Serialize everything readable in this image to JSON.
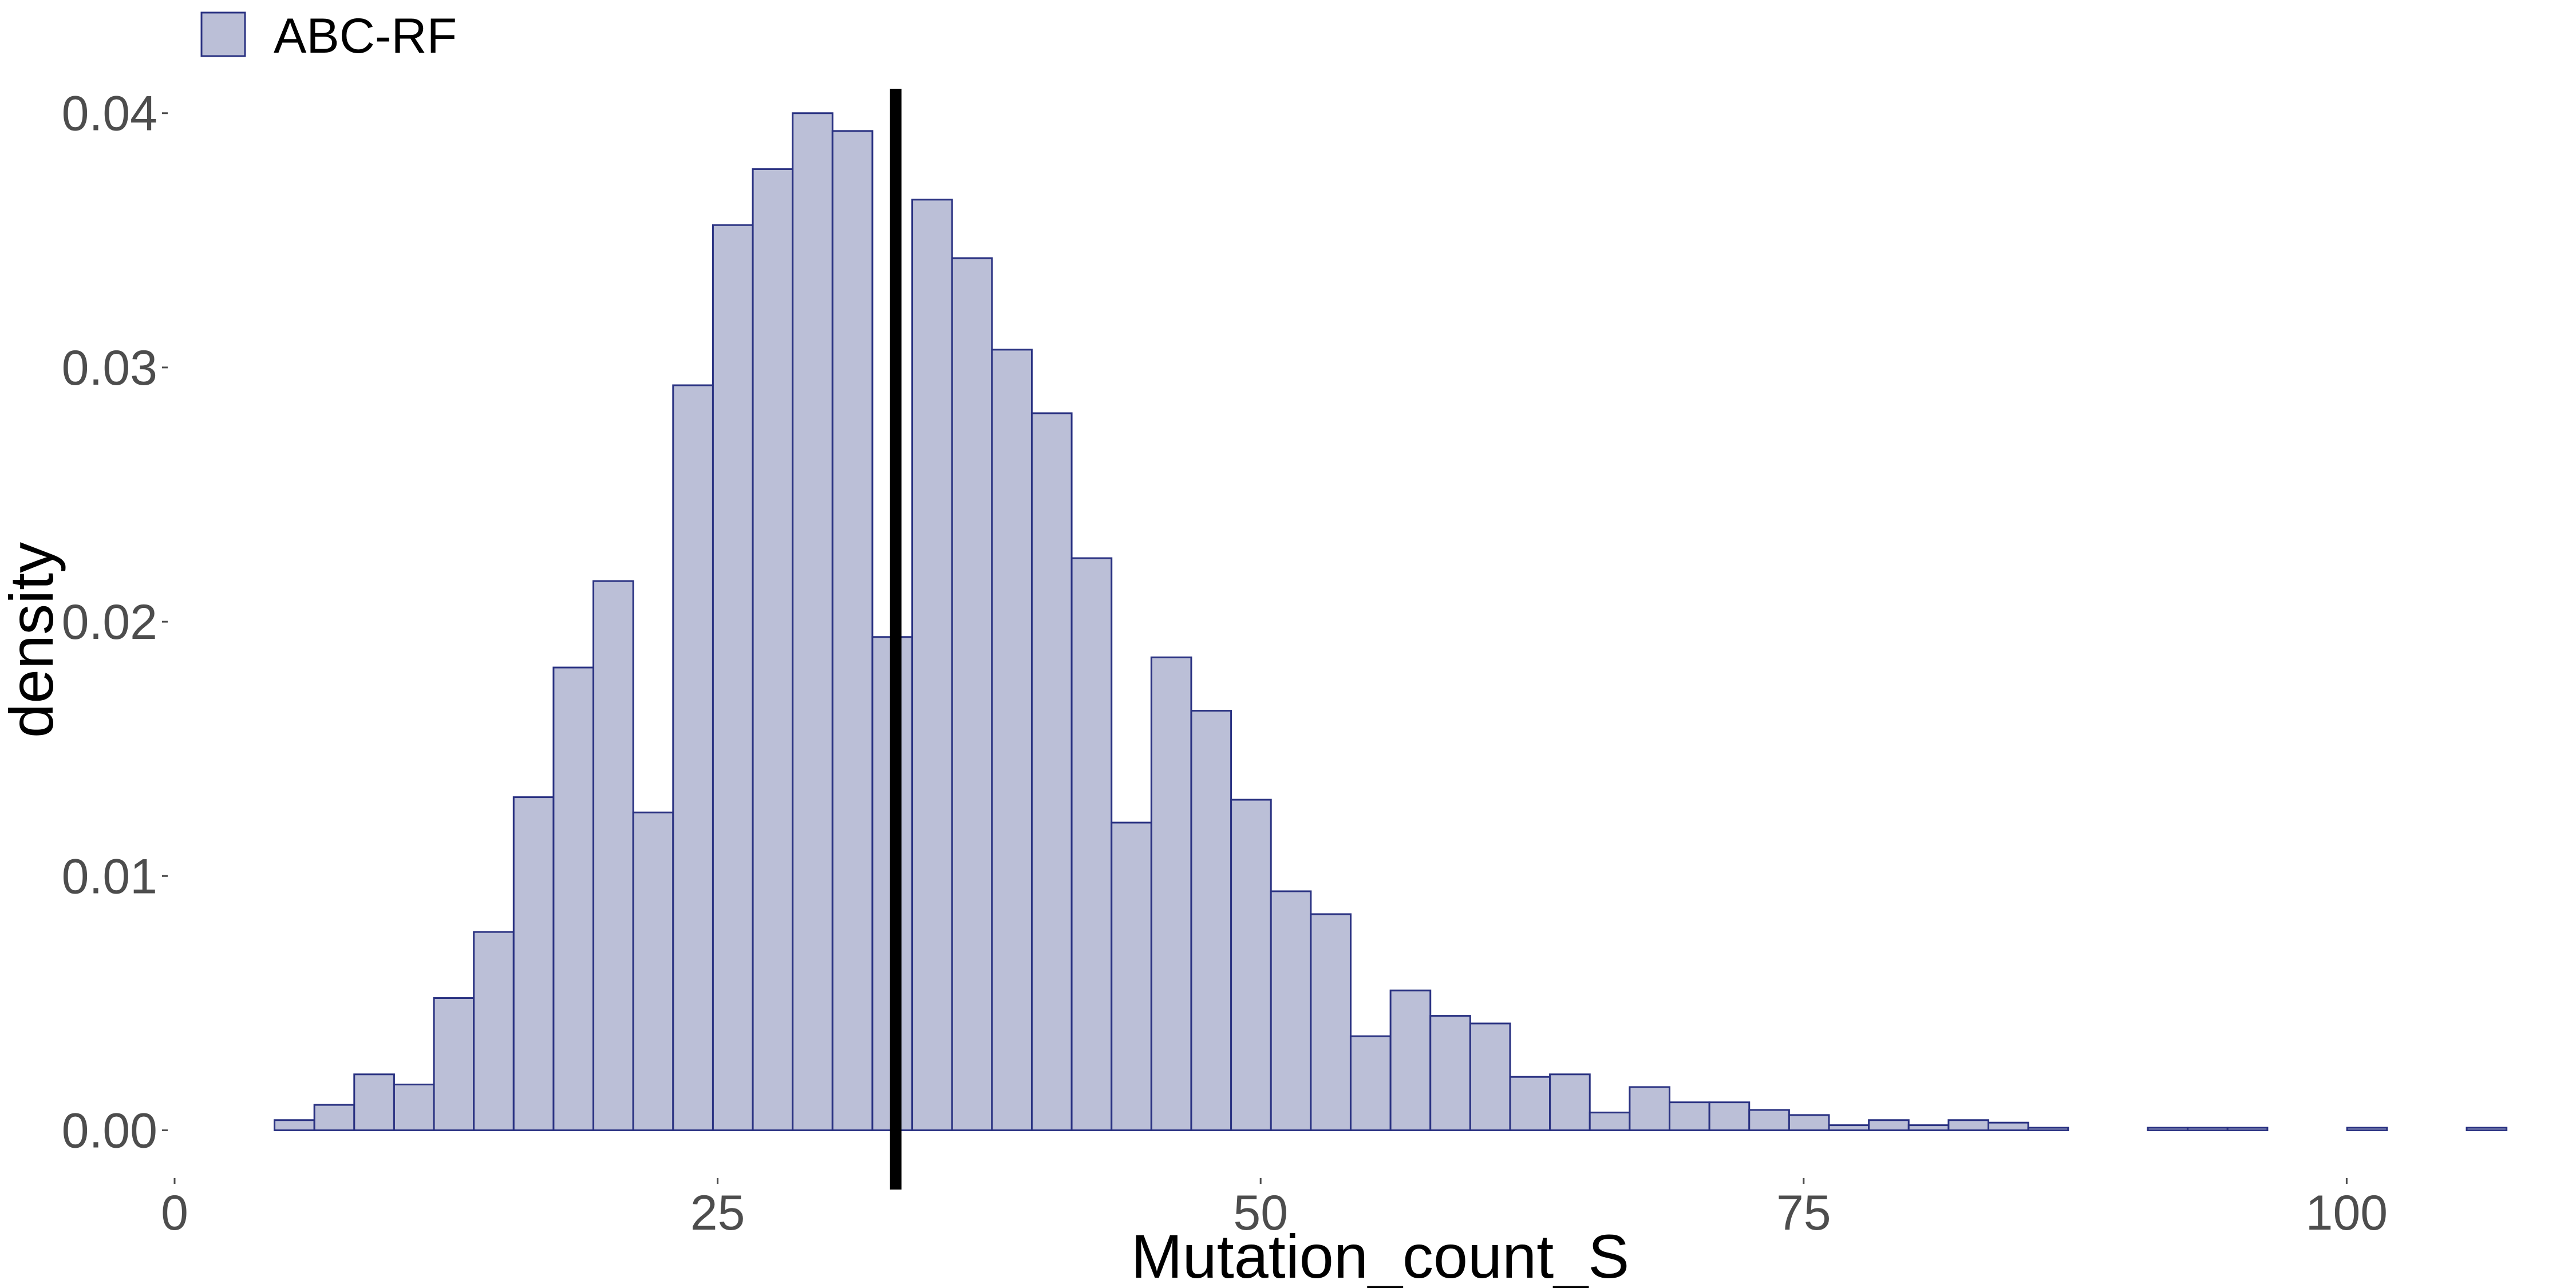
{
  "chart_data": {
    "type": "bar",
    "subtype": "histogram",
    "xlabel": "Mutation_count_S",
    "ylabel": "density",
    "xlim": [
      0,
      107
    ],
    "ylim": [
      -0.0017,
      0.0422
    ],
    "x_ticks": [
      0,
      25,
      50,
      75,
      100
    ],
    "x_tick_labels": [
      "0",
      "25",
      "50",
      "75",
      "100"
    ],
    "y_ticks": [
      0.0,
      0.01,
      0.02,
      0.03,
      0.04
    ],
    "y_tick_labels": [
      "0.00",
      "0.01",
      "0.02",
      "0.03",
      "0.04"
    ],
    "grid": false,
    "legend_position": "top-left",
    "bin_width": 1.835,
    "x_start": 4.6,
    "series": [
      {
        "name": "ABC-RF",
        "fill": "#bbbfd7",
        "stroke": "#2a3282",
        "values": [
          0.0004,
          0.001,
          0.0022,
          0.0018,
          0.0052,
          0.0078,
          0.0131,
          0.0182,
          0.0216,
          0.0125,
          0.0293,
          0.0356,
          0.0378,
          0.04,
          0.0393,
          0.0194,
          0.0366,
          0.0343,
          0.0307,
          0.0282,
          0.0225,
          0.0121,
          0.0186,
          0.0165,
          0.013,
          0.0094,
          0.0085,
          0.0037,
          0.0055,
          0.0045,
          0.0042,
          0.0021,
          0.0022,
          0.0007,
          0.0017,
          0.0011,
          0.0011,
          0.0008,
          0.0006,
          0.0002,
          0.0004,
          0.0002,
          0.0004,
          0.0003,
          0.0001,
          0,
          0,
          0.0001,
          0.0001,
          0.0001,
          0,
          0,
          0.0001,
          0,
          0,
          0.0001
        ]
      }
    ],
    "vline": {
      "x": 33.2,
      "color": "#000000"
    }
  }
}
